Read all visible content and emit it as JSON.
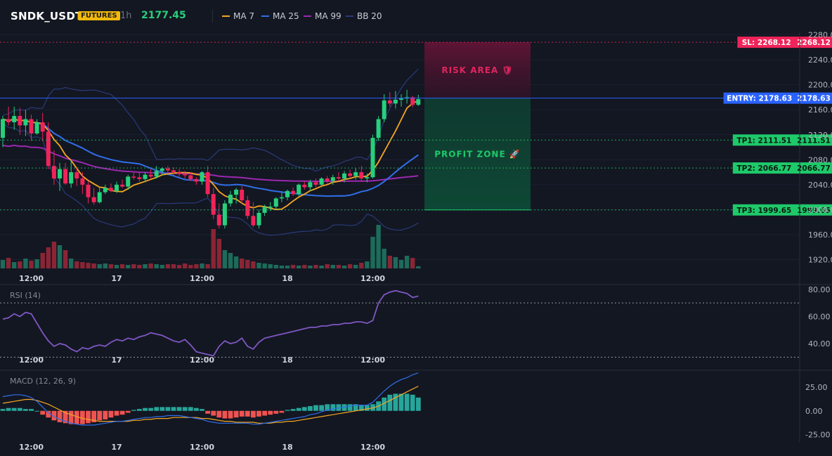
{
  "header": {
    "symbol": "SNDK_USDT",
    "badge": "FUTURES",
    "timeframe": "1h",
    "price": "2177.45",
    "legend": [
      {
        "label": "MA 7",
        "color": "#f5a623"
      },
      {
        "label": "MA 25",
        "color": "#2f6fe8"
      },
      {
        "label": "MA 99",
        "color": "#9c27b0"
      },
      {
        "label": "BB 20",
        "color": "#2a3a78"
      }
    ]
  },
  "colors": {
    "up": "#26d07c",
    "down": "#f0245a",
    "vol_up": "#1d6b5a",
    "vol_down": "#8a2535",
    "entry": "#2962ff",
    "sl": "#f0245a",
    "tp": "#1ec96a",
    "rsi": "#7e57c2"
  },
  "chart_data": [
    {
      "type": "candlestick",
      "name": "price",
      "yticks": [
        "2280.00",
        "2240.00",
        "2200.00",
        "2160.00",
        "2120.00",
        "2080.00",
        "2040.00",
        "2000.00",
        "1960.00",
        "1920.00"
      ],
      "ylim": [
        1906,
        2284
      ],
      "xtick_labels": [
        "12:00",
        "17",
        "12:00",
        "18",
        "12:00"
      ],
      "levels": [
        {
          "label": "SL: 2268.12",
          "price_label": "2268.12",
          "value": 2268.12,
          "kind": "sl"
        },
        {
          "label": "ENTRY: 2178.63",
          "price_label": "2178.63",
          "value": 2178.63,
          "kind": "entry"
        },
        {
          "label": "TP1: 2111.51",
          "price_label": "2111.51",
          "value": 2111.51,
          "kind": "tp"
        },
        {
          "label": "TP2: 2066.77",
          "price_label": "2066.77",
          "value": 2066.77,
          "kind": "tp"
        },
        {
          "label": "TP3: 1999.65",
          "price_label": "1999.65",
          "value": 1999.65,
          "kind": "tp"
        }
      ],
      "zones": {
        "risk_label": "RISK AREA 🛡",
        "profit_label": "PROFIT ZONE 🚀"
      },
      "candles": [
        [
          2115,
          2150,
          2100,
          2145
        ],
        [
          2145,
          2165,
          2135,
          2140
        ],
        [
          2140,
          2165,
          2128,
          2150
        ],
        [
          2150,
          2163,
          2120,
          2135
        ],
        [
          2135,
          2160,
          2118,
          2145
        ],
        [
          2145,
          2152,
          2110,
          2122
        ],
        [
          2122,
          2145,
          2120,
          2140
        ],
        [
          2140,
          2155,
          2110,
          2125
        ],
        [
          2125,
          2140,
          2065,
          2070
        ],
        [
          2070,
          2095,
          2040,
          2050
        ],
        [
          2050,
          2075,
          2030,
          2065
        ],
        [
          2065,
          2075,
          2040,
          2042
        ],
        [
          2042,
          2080,
          2035,
          2060
        ],
        [
          2060,
          2068,
          2038,
          2050
        ],
        [
          2050,
          2060,
          2025,
          2040
        ],
        [
          2040,
          2045,
          2010,
          2020
        ],
        [
          2020,
          2035,
          2008,
          2012
        ],
        [
          2012,
          2035,
          2010,
          2028
        ],
        [
          2028,
          2040,
          2025,
          2035
        ],
        [
          2035,
          2042,
          2028,
          2030
        ],
        [
          2030,
          2045,
          2027,
          2040
        ],
        [
          2040,
          2048,
          2035,
          2037
        ],
        [
          2037,
          2056,
          2032,
          2053
        ],
        [
          2053,
          2060,
          2048,
          2052
        ],
        [
          2052,
          2060,
          2045,
          2049
        ],
        [
          2049,
          2060,
          2044,
          2056
        ],
        [
          2056,
          2065,
          2050,
          2053
        ],
        [
          2053,
          2070,
          2050,
          2062
        ],
        [
          2062,
          2068,
          2055,
          2066
        ],
        [
          2066,
          2070,
          2060,
          2063
        ],
        [
          2063,
          2068,
          2055,
          2060
        ],
        [
          2060,
          2065,
          2052,
          2057
        ],
        [
          2057,
          2062,
          2050,
          2055
        ],
        [
          2055,
          2060,
          2046,
          2049
        ],
        [
          2049,
          2052,
          2040,
          2045
        ],
        [
          2045,
          2062,
          2040,
          2060
        ],
        [
          2060,
          2070,
          2020,
          2025
        ],
        [
          2025,
          2035,
          1985,
          1992
        ],
        [
          1992,
          2010,
          1970,
          1975
        ],
        [
          1975,
          2015,
          1970,
          2010
        ],
        [
          2010,
          2030,
          2005,
          2024
        ],
        [
          2024,
          2035,
          2010,
          2032
        ],
        [
          2032,
          2038,
          2010,
          2015
        ],
        [
          2015,
          2022,
          1985,
          1990
        ],
        [
          1990,
          2012,
          1972,
          1975
        ],
        [
          1975,
          2000,
          1970,
          1995
        ],
        [
          1995,
          2008,
          1990,
          2004
        ],
        [
          2004,
          2012,
          1998,
          2005
        ],
        [
          2005,
          2020,
          2000,
          2018
        ],
        [
          2018,
          2028,
          2012,
          2020
        ],
        [
          2020,
          2032,
          2015,
          2030
        ],
        [
          2030,
          2036,
          2022,
          2025
        ],
        [
          2025,
          2042,
          2022,
          2040
        ],
        [
          2040,
          2046,
          2032,
          2036
        ],
        [
          2036,
          2048,
          2030,
          2044
        ],
        [
          2044,
          2050,
          2036,
          2040
        ],
        [
          2040,
          2052,
          2036,
          2050
        ],
        [
          2050,
          2054,
          2042,
          2046
        ],
        [
          2046,
          2056,
          2040,
          2052
        ],
        [
          2052,
          2060,
          2046,
          2050
        ],
        [
          2050,
          2062,
          2044,
          2058
        ],
        [
          2058,
          2064,
          2050,
          2054
        ],
        [
          2054,
          2066,
          2048,
          2060
        ],
        [
          2060,
          2070,
          2045,
          2050
        ],
        [
          2050,
          2058,
          2044,
          2052
        ],
        [
          2052,
          2120,
          2050,
          2115
        ],
        [
          2115,
          2150,
          2110,
          2145
        ],
        [
          2145,
          2185,
          2140,
          2175
        ],
        [
          2175,
          2188,
          2165,
          2170
        ],
        [
          2170,
          2190,
          2162,
          2176
        ],
        [
          2176,
          2185,
          2165,
          2178
        ],
        [
          2178,
          2192,
          2170,
          2180
        ],
        [
          2180,
          2182,
          2164,
          2168
        ],
        [
          2168,
          2184,
          2166,
          2177
        ]
      ],
      "volumes": [
        12,
        15,
        9,
        10,
        14,
        11,
        13,
        22,
        30,
        38,
        33,
        26,
        14,
        10,
        9,
        8,
        7,
        6,
        7,
        6,
        5,
        6,
        5,
        6,
        5,
        6,
        7,
        6,
        5,
        6,
        6,
        5,
        7,
        5,
        6,
        7,
        6,
        56,
        42,
        26,
        22,
        17,
        14,
        12,
        10,
        8,
        7,
        6,
        5,
        4,
        4,
        5,
        4,
        5,
        4,
        5,
        4,
        6,
        5,
        5,
        4,
        6,
        5,
        8,
        10,
        45,
        62,
        28,
        18,
        16,
        12,
        18,
        15,
        3
      ]
    },
    {
      "type": "line",
      "name": "RSI (14)",
      "title": "RSI (14)",
      "yticks": [
        "80.00",
        "60.00",
        "40.00"
      ],
      "ylim": [
        25,
        83
      ],
      "levels": [
        70,
        30
      ],
      "values": [
        58,
        59,
        62,
        60,
        63,
        62,
        55,
        48,
        42,
        38,
        40,
        39,
        36,
        34,
        37,
        36,
        38,
        39,
        38,
        41,
        43,
        42,
        44,
        43,
        45,
        46,
        48,
        47,
        46,
        44,
        42,
        41,
        43,
        39,
        34,
        33,
        32,
        31,
        38,
        42,
        40,
        41,
        44,
        38,
        36,
        41,
        44,
        45,
        46,
        47,
        48,
        49,
        50,
        51,
        52,
        52,
        53,
        53,
        54,
        54,
        55,
        55,
        56,
        56,
        55,
        57,
        70,
        76,
        78,
        79,
        78,
        77,
        74,
        75
      ]
    },
    {
      "type": "bar+line",
      "name": "MACD (12, 26, 9)",
      "title": "MACD (12, 26, 9)",
      "yticks": [
        "25.00",
        "0.00",
        "-25.00"
      ],
      "ylim": [
        -32,
        42
      ],
      "histogram": [
        2,
        3,
        3,
        3,
        2,
        2,
        0,
        -4,
        -7,
        -10,
        -12,
        -13,
        -14,
        -14,
        -14,
        -13,
        -12,
        -10,
        -9,
        -7,
        -5,
        -4,
        -2,
        1,
        2,
        3,
        3,
        4,
        4,
        4,
        4,
        4,
        4,
        4,
        3,
        2,
        -3,
        -5,
        -7,
        -8,
        -8,
        -7,
        -6,
        -6,
        -7,
        -6,
        -5,
        -4,
        -3,
        -2,
        1,
        2,
        3,
        4,
        5,
        6,
        6,
        7,
        7,
        7,
        7,
        7,
        7,
        6,
        6,
        7,
        10,
        14,
        17,
        18,
        18,
        18,
        17,
        14
      ],
      "macd": [
        15,
        16,
        17,
        17,
        16,
        14,
        10,
        4,
        -2,
        -6,
        -9,
        -11,
        -13,
        -14,
        -15,
        -15,
        -15,
        -14,
        -13,
        -12,
        -11,
        -11,
        -10,
        -9,
        -8,
        -7,
        -7,
        -6,
        -6,
        -5,
        -5,
        -5,
        -6,
        -7,
        -8,
        -9,
        -11,
        -12,
        -13,
        -13,
        -13,
        -13,
        -13,
        -13,
        -14,
        -14,
        -13,
        -12,
        -11,
        -10,
        -9,
        -8,
        -7,
        -6,
        -4,
        -3,
        -1,
        1,
        2,
        3,
        4,
        5,
        6,
        6,
        6,
        9,
        15,
        21,
        26,
        30,
        33,
        35,
        38,
        40
      ],
      "signal": [
        8,
        9,
        10,
        11,
        12,
        12,
        11,
        9,
        7,
        4,
        1,
        -2,
        -4,
        -6,
        -8,
        -9,
        -10,
        -11,
        -11,
        -11,
        -11,
        -11,
        -11,
        -10,
        -10,
        -9,
        -9,
        -8,
        -8,
        -8,
        -7,
        -7,
        -7,
        -7,
        -7,
        -8,
        -8,
        -9,
        -10,
        -11,
        -11,
        -12,
        -12,
        -12,
        -12,
        -13,
        -13,
        -13,
        -12,
        -12,
        -11,
        -11,
        -10,
        -9,
        -8,
        -7,
        -6,
        -5,
        -4,
        -3,
        -2,
        -1,
        0,
        1,
        2,
        3,
        5,
        8,
        11,
        14,
        17,
        20,
        23,
        26
      ]
    }
  ]
}
